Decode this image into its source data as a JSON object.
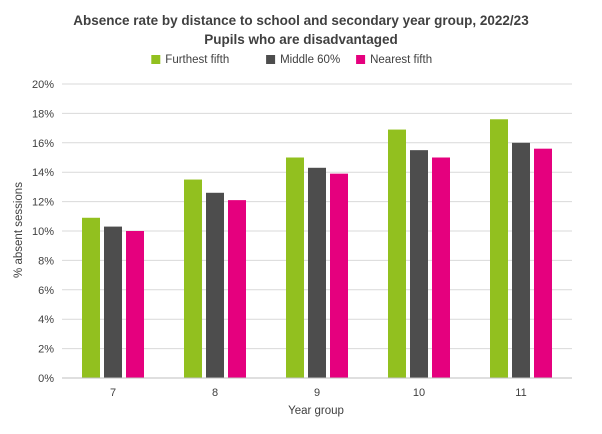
{
  "chart_data": {
    "type": "bar",
    "title": "Absence rate by distance to school and secondary year group, 2022/23",
    "subtitle": "Pupils who are disadvantaged",
    "xlabel": "Year group",
    "ylabel": "% absent sessions",
    "categories": [
      "7",
      "8",
      "9",
      "10",
      "11"
    ],
    "series": [
      {
        "name": "Furthest fifth",
        "color": "#92c01f",
        "values": [
          10.9,
          13.5,
          15.0,
          16.9,
          17.6
        ]
      },
      {
        "name": "Middle 60%",
        "color": "#4d4d4d",
        "values": [
          10.3,
          12.6,
          14.3,
          15.5,
          16.0
        ]
      },
      {
        "name": "Nearest fifth",
        "color": "#e5007e",
        "values": [
          10.0,
          12.1,
          13.9,
          15.0,
          15.6
        ]
      }
    ],
    "ylim": [
      0,
      20
    ],
    "ytick_step": 2,
    "ytick_suffix": "%",
    "grid": true,
    "legend_position": "top"
  }
}
